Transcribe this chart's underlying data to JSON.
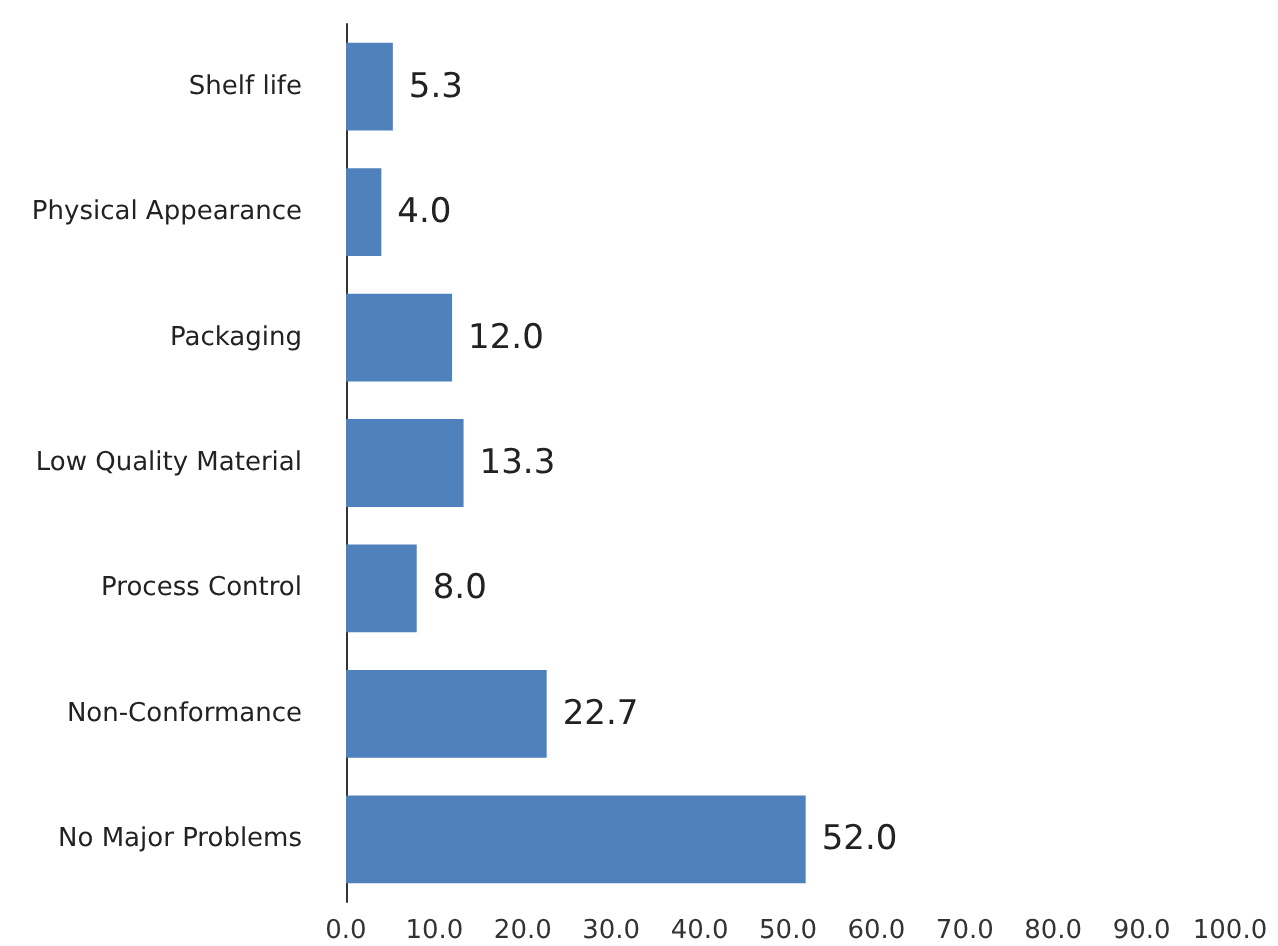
{
  "chart_data": {
    "type": "bar",
    "orientation": "horizontal",
    "categories": [
      "Shelf life",
      "Physical Appearance",
      "Packaging",
      "Low Quality Material",
      "Process Control",
      "Non-Conformance",
      "No Major Problems"
    ],
    "values": [
      5.3,
      4.0,
      12.0,
      13.3,
      8.0,
      22.7,
      52.0
    ],
    "value_labels": [
      "5.3",
      "4.0",
      "12.0",
      "13.3",
      "8.0",
      "22.7",
      "52.0"
    ],
    "color": "#4f81bd",
    "xlim": [
      0,
      100
    ],
    "xticks": [
      {
        "value": 0,
        "label": "0.0"
      },
      {
        "value": 10,
        "label": "10.0"
      },
      {
        "value": 20,
        "label": "20.0"
      },
      {
        "value": 30,
        "label": "30.0"
      },
      {
        "value": 40,
        "label": "40.0"
      },
      {
        "value": 50,
        "label": "50.0"
      },
      {
        "value": 60,
        "label": "60.0"
      },
      {
        "value": 70,
        "label": "70.0"
      },
      {
        "value": 80,
        "label": "80.0"
      },
      {
        "value": 90,
        "label": "90.0"
      },
      {
        "value": 100,
        "label": "100.0"
      }
    ],
    "grid": false
  }
}
